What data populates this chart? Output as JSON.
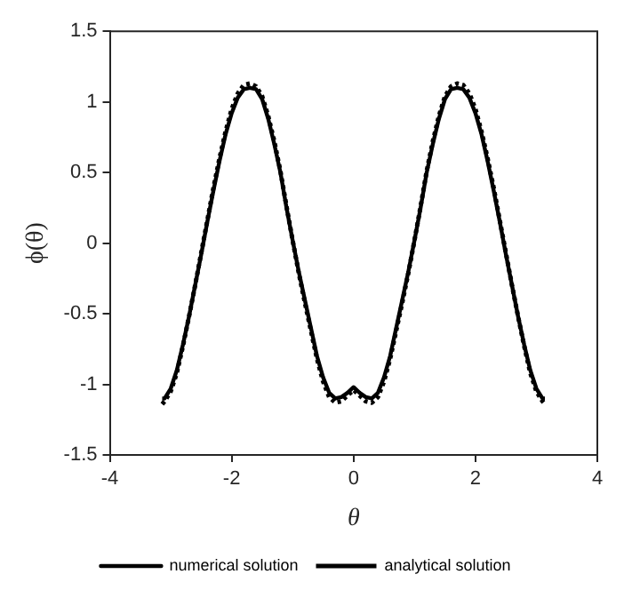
{
  "chart_data": {
    "type": "line",
    "xlabel": "θ",
    "ylabel": "ϕ(θ)",
    "xlim": [
      -4,
      4
    ],
    "xticks": [
      -4,
      -2,
      0,
      2,
      4
    ],
    "ylim": [
      -1.5,
      1.5
    ],
    "yticks": [
      -1.5,
      -1,
      -0.5,
      0,
      0.5,
      1,
      1.5
    ],
    "grid": false,
    "legend": "bottom",
    "marker": "none",
    "series": [
      {
        "name": "numerical solution",
        "color": "#000000",
        "line_style": "solid",
        "x": [
          -3.14,
          -3.1,
          -3.0,
          -2.9,
          -2.8,
          -2.7,
          -2.6,
          -2.5,
          -2.4,
          -2.3,
          -2.2,
          -2.1,
          -2.0,
          -1.9,
          -1.8,
          -1.7,
          -1.6,
          -1.5,
          -1.4,
          -1.3,
          -1.2,
          -1.1,
          -1.0,
          -0.9,
          -0.8,
          -0.7,
          -0.6,
          -0.5,
          -0.4,
          -0.3,
          -0.2,
          -0.1,
          0,
          0.1,
          0.2,
          0.3,
          0.4,
          0.5,
          0.6,
          0.7,
          0.8,
          0.9,
          1.0,
          1.1,
          1.2,
          1.3,
          1.4,
          1.5,
          1.6,
          1.7,
          1.8,
          1.9,
          2.0,
          2.1,
          2.2,
          2.3,
          2.4,
          2.5,
          2.6,
          2.7,
          2.8,
          2.9,
          3.0,
          3.1,
          3.14
        ],
        "values": [
          -1.1,
          -1.1,
          -1.03,
          -0.9,
          -0.72,
          -0.52,
          -0.3,
          -0.08,
          0.15,
          0.37,
          0.58,
          0.77,
          0.92,
          1.03,
          1.09,
          1.1,
          1.09,
          1.02,
          0.88,
          0.7,
          0.5,
          0.25,
          0.02,
          -0.2,
          -0.4,
          -0.6,
          -0.8,
          -0.95,
          -1.06,
          -1.1,
          -1.09,
          -1.06,
          -1.02,
          -1.06,
          -1.09,
          -1.1,
          -1.06,
          -0.95,
          -0.8,
          -0.6,
          -0.4,
          -0.2,
          0.02,
          0.25,
          0.5,
          0.7,
          0.88,
          1.02,
          1.09,
          1.1,
          1.09,
          1.03,
          0.92,
          0.77,
          0.58,
          0.37,
          0.15,
          -0.08,
          -0.3,
          -0.52,
          -0.72,
          -0.9,
          -1.03,
          -1.1,
          -1.1
        ]
      },
      {
        "name": "analytical solution",
        "color": "#000000",
        "line_style": "dotted",
        "x": [
          -3.14,
          -3.1,
          -3.0,
          -2.9,
          -2.8,
          -2.7,
          -2.6,
          -2.5,
          -2.4,
          -2.3,
          -2.2,
          -2.1,
          -2.0,
          -1.9,
          -1.8,
          -1.7,
          -1.6,
          -1.5,
          -1.4,
          -1.3,
          -1.2,
          -1.1,
          -1.0,
          -0.9,
          -0.8,
          -0.7,
          -0.6,
          -0.5,
          -0.4,
          -0.3,
          -0.2,
          -0.1,
          0,
          0.1,
          0.2,
          0.3,
          0.4,
          0.5,
          0.6,
          0.7,
          0.8,
          0.9,
          1.0,
          1.1,
          1.2,
          1.3,
          1.4,
          1.5,
          1.6,
          1.7,
          1.8,
          1.9,
          2.0,
          2.1,
          2.2,
          2.3,
          2.4,
          2.5,
          2.6,
          2.7,
          2.8,
          2.9,
          3.0,
          3.1,
          3.14
        ],
        "values": [
          -1.14,
          -1.12,
          -1.05,
          -0.92,
          -0.73,
          -0.52,
          -0.3,
          -0.07,
          0.16,
          0.39,
          0.6,
          0.79,
          0.95,
          1.06,
          1.12,
          1.13,
          1.11,
          1.04,
          0.9,
          0.72,
          0.51,
          0.26,
          0.02,
          -0.21,
          -0.42,
          -0.62,
          -0.82,
          -0.98,
          -1.09,
          -1.13,
          -1.12,
          -1.08,
          -1.04,
          -1.08,
          -1.12,
          -1.13,
          -1.09,
          -0.98,
          -0.82,
          -0.62,
          -0.42,
          -0.21,
          0.02,
          0.26,
          0.51,
          0.72,
          0.9,
          1.04,
          1.11,
          1.13,
          1.12,
          1.06,
          0.95,
          0.79,
          0.6,
          0.39,
          0.16,
          -0.07,
          -0.3,
          -0.52,
          -0.73,
          -0.92,
          -1.05,
          -1.12,
          -1.14
        ]
      }
    ]
  }
}
